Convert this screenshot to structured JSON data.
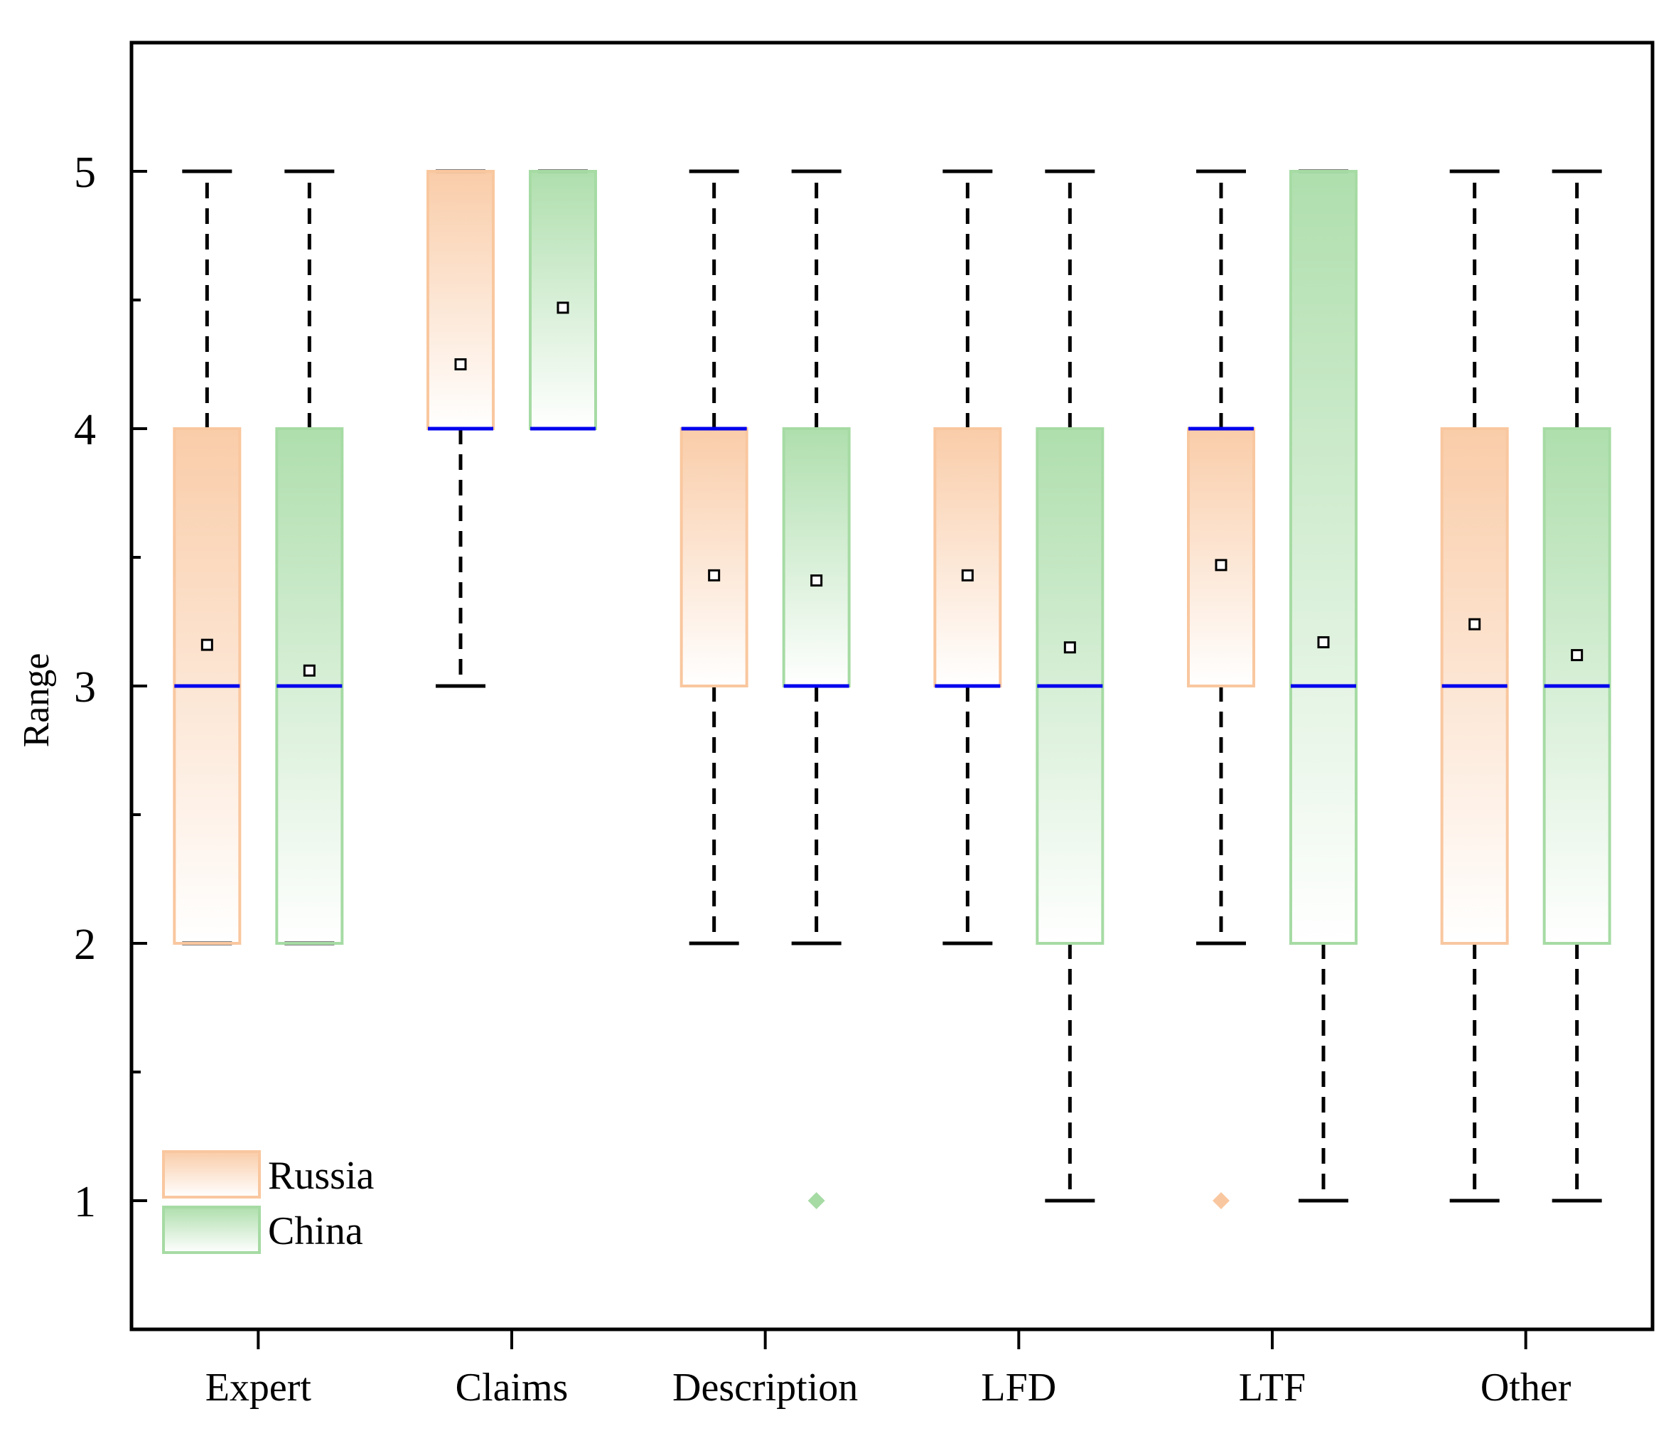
{
  "chart_data": {
    "type": "box",
    "title": "",
    "xlabel": "",
    "ylabel": "Range",
    "ylim": [
      0.5,
      5.5
    ],
    "yticks": [
      1,
      2,
      3,
      4,
      5
    ],
    "grid": false,
    "legend_position": "bottom-left",
    "categories": [
      "Expert",
      "Claims",
      "Description",
      "LFD",
      "LTF",
      "Other"
    ],
    "series": [
      {
        "name": "Russia",
        "color": "#f9c79f",
        "boxes": [
          {
            "min": 2,
            "q1": 2,
            "median": 3,
            "q3": 4,
            "max": 5,
            "mean": 3.16,
            "outliers": []
          },
          {
            "min": 3,
            "q1": 4,
            "median": 4,
            "q3": 5,
            "max": 5,
            "mean": 4.25,
            "outliers": []
          },
          {
            "min": 2,
            "q1": 3,
            "median": 4,
            "q3": 4,
            "max": 5,
            "mean": 3.43,
            "outliers": []
          },
          {
            "min": 2,
            "q1": 3,
            "median": 3,
            "q3": 4,
            "max": 5,
            "mean": 3.43,
            "outliers": []
          },
          {
            "min": 2,
            "q1": 3,
            "median": 4,
            "q3": 4,
            "max": 5,
            "mean": 3.47,
            "outliers": [
              1
            ]
          },
          {
            "min": 1,
            "q1": 2,
            "median": 3,
            "q3": 4,
            "max": 5,
            "mean": 3.24,
            "outliers": []
          }
        ]
      },
      {
        "name": "China",
        "color": "#a6dba4",
        "boxes": [
          {
            "min": 2,
            "q1": 2,
            "median": 3,
            "q3": 4,
            "max": 5,
            "mean": 3.06,
            "outliers": []
          },
          {
            "min": 4,
            "q1": 4,
            "median": 4,
            "q3": 5,
            "max": 5,
            "mean": 4.47,
            "outliers": []
          },
          {
            "min": 2,
            "q1": 3,
            "median": 3,
            "q3": 4,
            "max": 5,
            "mean": 3.41,
            "outliers": [
              1
            ]
          },
          {
            "min": 1,
            "q1": 2,
            "median": 3,
            "q3": 4,
            "max": 5,
            "mean": 3.15,
            "outliers": []
          },
          {
            "min": 1,
            "q1": 2,
            "median": 3,
            "q3": 5,
            "max": 5,
            "mean": 3.17,
            "outliers": []
          },
          {
            "min": 1,
            "q1": 2,
            "median": 3,
            "q3": 4,
            "max": 5,
            "mean": 3.12,
            "outliers": []
          }
        ]
      }
    ],
    "median_color": "#0000ee"
  }
}
